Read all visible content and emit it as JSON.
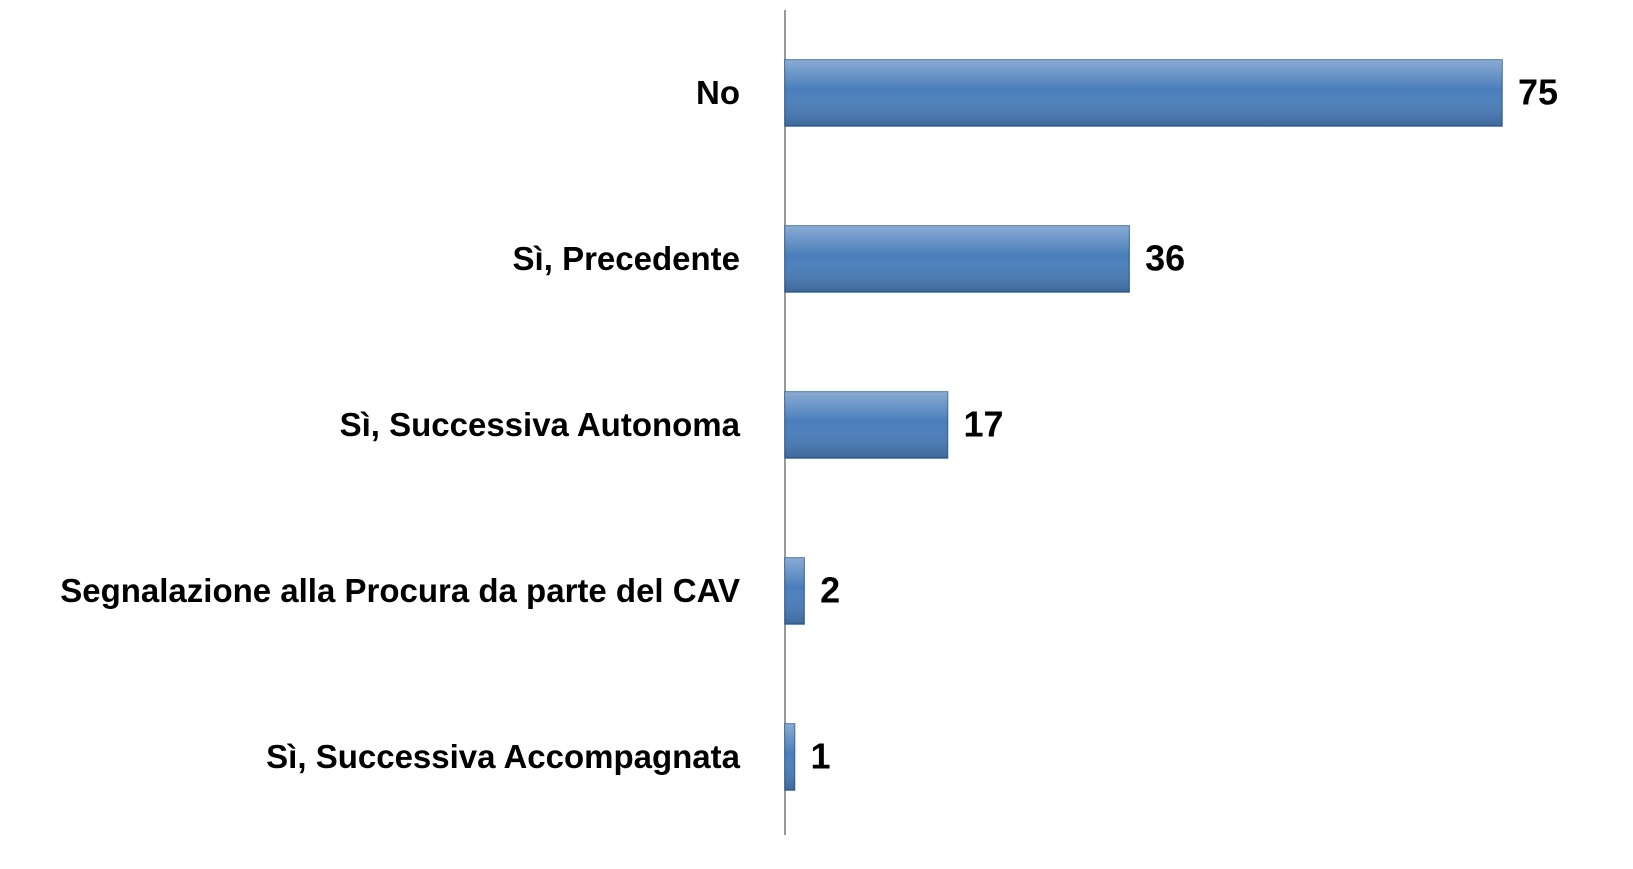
{
  "chart_data": {
    "type": "bar",
    "orientation": "horizontal",
    "categories": [
      "No",
      "Sì, Precedente",
      "Sì, Successiva Autonoma",
      "Segnalazione alla Procura da parte del CAV",
      "Sì, Successiva Accompagnata"
    ],
    "values": [
      75,
      36,
      17,
      2,
      1
    ],
    "color": "#4a7ebb"
  }
}
